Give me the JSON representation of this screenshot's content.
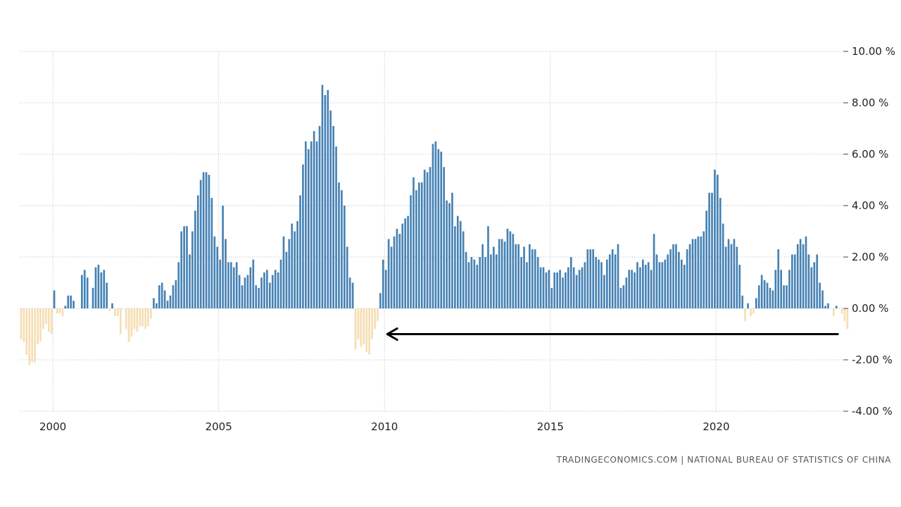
{
  "chart_data": {
    "type": "bar",
    "title": "",
    "xlabel": "",
    "ylabel": "",
    "ylim": [
      -4,
      10
    ],
    "y_ticks": [
      10,
      8,
      6,
      4,
      2,
      0,
      -2,
      -4
    ],
    "y_tick_labels": [
      "10.00 %",
      "8.00 %",
      "6.00 %",
      "4.00 %",
      "2.00 %",
      "0.00 %",
      "-2.00 %",
      "-4.00 %"
    ],
    "x_tick_labels": [
      "2000",
      "2005",
      "2010",
      "2015",
      "2020"
    ],
    "x_tick_years": [
      2000,
      2005,
      2010,
      2015,
      2020
    ],
    "x_range_years": [
      1999.0,
      2023.833
    ],
    "frequency": "monthly",
    "start": "1999-01",
    "gridlines": true,
    "positive_color": "#4682b4",
    "negative_color": "#f5deb3",
    "values": [
      -1.2,
      -1.3,
      -1.8,
      -2.2,
      -2.1,
      -2.1,
      -1.4,
      -1.3,
      -0.8,
      -0.6,
      -0.9,
      -1.0,
      0.7,
      -0.2,
      -0.2,
      -0.3,
      0.1,
      0.5,
      0.5,
      0.3,
      0.0,
      0.0,
      1.3,
      1.5,
      1.2,
      0.0,
      0.8,
      1.6,
      1.7,
      1.4,
      1.5,
      1.0,
      -0.1,
      0.2,
      -0.3,
      -0.3,
      -1.0,
      0.0,
      -0.8,
      -1.3,
      -1.1,
      -0.8,
      -0.9,
      -0.7,
      -0.7,
      -0.8,
      -0.7,
      -0.4,
      0.4,
      0.2,
      0.9,
      1.0,
      0.7,
      0.3,
      0.5,
      0.9,
      1.1,
      1.8,
      3.0,
      3.2,
      3.2,
      2.1,
      3.0,
      3.8,
      4.4,
      5.0,
      5.3,
      5.3,
      5.2,
      4.3,
      2.8,
      2.4,
      1.9,
      4.0,
      2.7,
      1.8,
      1.8,
      1.6,
      1.8,
      1.3,
      0.9,
      1.2,
      1.3,
      1.6,
      1.9,
      0.9,
      0.8,
      1.2,
      1.4,
      1.5,
      1.0,
      1.3,
      1.5,
      1.4,
      1.9,
      2.8,
      2.2,
      2.7,
      3.3,
      3.0,
      3.4,
      4.4,
      5.6,
      6.5,
      6.2,
      6.5,
      6.9,
      6.5,
      7.1,
      8.7,
      8.3,
      8.5,
      7.7,
      7.1,
      6.3,
      4.9,
      4.6,
      4.0,
      2.4,
      1.2,
      1.0,
      -1.6,
      -1.2,
      -1.5,
      -1.4,
      -1.7,
      -1.8,
      -1.2,
      -0.8,
      -0.5,
      0.6,
      1.9,
      1.5,
      2.7,
      2.4,
      2.8,
      3.1,
      2.9,
      3.3,
      3.5,
      3.6,
      4.4,
      5.1,
      4.6,
      4.9,
      4.9,
      5.4,
      5.3,
      5.5,
      6.4,
      6.5,
      6.2,
      6.1,
      5.5,
      4.2,
      4.1,
      4.5,
      3.2,
      3.6,
      3.4,
      3.0,
      2.2,
      1.8,
      2.0,
      1.9,
      1.7,
      2.0,
      2.5,
      2.0,
      3.2,
      2.1,
      2.4,
      2.1,
      2.7,
      2.7,
      2.6,
      3.1,
      3.0,
      2.9,
      2.5,
      2.5,
      2.0,
      2.4,
      1.8,
      2.5,
      2.3,
      2.3,
      2.0,
      1.6,
      1.6,
      1.4,
      1.5,
      0.8,
      1.4,
      1.4,
      1.5,
      1.2,
      1.4,
      1.6,
      2.0,
      1.6,
      1.3,
      1.5,
      1.6,
      1.8,
      2.3,
      2.3,
      2.3,
      2.0,
      1.9,
      1.8,
      1.3,
      1.9,
      2.1,
      2.3,
      2.1,
      2.5,
      0.8,
      0.9,
      1.2,
      1.5,
      1.5,
      1.4,
      1.8,
      1.6,
      1.9,
      1.7,
      1.8,
      1.5,
      2.9,
      2.1,
      1.8,
      1.8,
      1.9,
      2.1,
      2.3,
      2.5,
      2.5,
      2.2,
      1.9,
      1.7,
      2.3,
      2.5,
      2.7,
      2.7,
      2.8,
      2.8,
      3.0,
      3.8,
      4.5,
      4.5,
      5.4,
      5.2,
      4.3,
      3.3,
      2.4,
      2.7,
      2.5,
      2.7,
      2.4,
      1.7,
      0.5,
      -0.5,
      0.2,
      -0.3,
      -0.2,
      0.4,
      0.9,
      1.3,
      1.1,
      1.0,
      0.8,
      0.7,
      1.5,
      2.3,
      1.5,
      0.9,
      0.9,
      1.5,
      2.1,
      2.1,
      2.5,
      2.7,
      2.5,
      2.8,
      2.1,
      1.6,
      1.8,
      2.1,
      1.0,
      0.7,
      0.1,
      0.2,
      0.0,
      -0.3,
      0.1,
      0.0,
      -0.2,
      -0.5,
      -0.8
    ],
    "annotations": [
      {
        "type": "arrow",
        "from": "2023-09",
        "to": "2010-02",
        "y": -1.0,
        "color": "#000000"
      }
    ],
    "source": "TRADINGECONOMICS.COM  |  NATIONAL BUREAU OF STATISTICS OF CHINA"
  }
}
